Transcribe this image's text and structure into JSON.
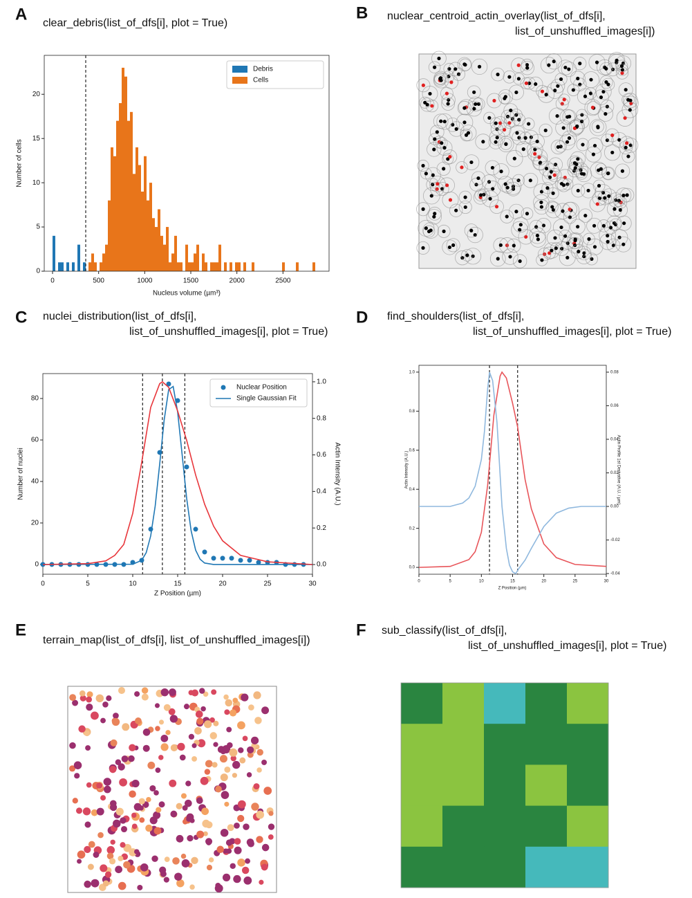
{
  "panels": [
    {
      "letter": "A",
      "caption": [
        "clear_debris(list_of_dfs[i], plot = True)"
      ]
    },
    {
      "letter": "B",
      "caption": [
        "nuclear_centroid_actin_overlay(list_of_dfs[i],",
        "list_of_unshuffled_images[i])"
      ]
    },
    {
      "letter": "C",
      "caption": [
        "nuclei_distribution(list_of_dfs[i],",
        "list_of_unshuffled_images[i], plot = True)"
      ]
    },
    {
      "letter": "D",
      "caption": [
        "find_shoulders(list_of_dfs[i],",
        "list_of_unshuffled_images[i], plot = True)"
      ]
    },
    {
      "letter": "E",
      "caption": [
        "terrain_map(list_of_dfs[i], list_of_unshuffled_images[i])"
      ]
    },
    {
      "letter": "F",
      "caption": [
        "sub_classify(list_of_dfs[i],",
        "list_of_unshuffled_images[i], plot = True)"
      ]
    }
  ],
  "chart_data": [
    {
      "type": "histogram",
      "x_label": "Nucleus volume (µm³)",
      "y_label": "Number of cells",
      "xlim": [
        -90,
        3000
      ],
      "ylim": [
        0,
        24.4
      ],
      "xticks": [
        0,
        500,
        1000,
        1500,
        2000,
        2500
      ],
      "yticks": [
        0,
        5,
        10,
        15,
        20
      ],
      "legend": "upper right",
      "vlines": [
        360
      ],
      "series": [
        {
          "name": "Debris",
          "color": "#1f77b4",
          "bins": [
            0,
            30,
            60,
            90,
            120,
            150,
            180,
            210,
            240,
            270,
            300,
            330,
            360
          ],
          "values": [
            4,
            0,
            1,
            1,
            0,
            1,
            0,
            1,
            0,
            3,
            0,
            1
          ]
        },
        {
          "name": "Cells",
          "color": "#e8751a",
          "bins": [
            360,
            390,
            420,
            450,
            480,
            510,
            540,
            570,
            600,
            630,
            660,
            690,
            720,
            750,
            780,
            810,
            840,
            870,
            900,
            930,
            960,
            990,
            1020,
            1050,
            1080,
            1110,
            1140,
            1170,
            1200,
            1230,
            1260,
            1290,
            1320,
            1350,
            1380,
            1410,
            1440,
            1470,
            1500,
            1530,
            1560,
            1590,
            1620,
            1650,
            1680,
            1710,
            1740,
            1770,
            1800,
            1830,
            1860,
            1890,
            1920,
            1950,
            1980,
            2010,
            2040,
            2070,
            2100,
            2130,
            2160,
            2190,
            2220,
            2250,
            2280,
            2310,
            2340,
            2370,
            2400,
            2430,
            2460,
            2490,
            2520,
            2550,
            2580,
            2610,
            2640,
            2670,
            2700,
            2730,
            2760,
            2790,
            2820,
            2850
          ],
          "values": [
            0,
            1,
            2,
            1,
            0,
            1,
            2,
            3,
            8,
            14,
            13,
            17,
            19,
            23,
            22,
            17,
            18,
            11,
            14,
            12,
            9,
            13,
            8,
            10,
            6,
            5,
            7,
            4,
            3,
            5,
            1,
            2,
            4,
            1,
            1,
            0,
            3,
            1,
            1,
            2,
            3,
            0,
            2,
            1,
            0,
            1,
            1,
            1,
            3,
            0,
            1,
            0,
            1,
            0,
            1,
            1,
            0,
            1,
            0,
            0,
            1,
            0,
            0,
            0,
            0,
            0,
            0,
            0,
            0,
            0,
            0,
            1,
            0,
            0,
            0,
            0,
            1,
            0,
            0,
            0,
            0,
            0,
            1
          ]
        }
      ]
    },
    {
      "type": "line",
      "x_label": "Z Position (µm)",
      "y_label": "Number of nuclei",
      "y2_label": "Actin Intensity (A.U.)",
      "xlim": [
        0,
        30
      ],
      "ylim": [
        -4.7,
        92
      ],
      "y2lim": [
        -0.053,
        1.045
      ],
      "xticks": [
        0,
        5,
        10,
        15,
        20,
        25,
        30
      ],
      "yticks": [
        0,
        20,
        40,
        60,
        80
      ],
      "y2ticks": [
        {
          "value": 0,
          "label": "0.0"
        },
        0.2,
        0.4,
        0.6,
        0.8,
        {
          "value": 1,
          "label": "1.0"
        }
      ],
      "legend": "upper right",
      "vlines": [
        11.1,
        13.3,
        15.8
      ],
      "series": [
        {
          "name": "Nuclear Position",
          "kind": "scatter",
          "color": "#1f77b4",
          "x": [
            0,
            1,
            2,
            3,
            4,
            5,
            6,
            7,
            8,
            9,
            10,
            11,
            12,
            13,
            14,
            15,
            16,
            17,
            18,
            19,
            20,
            21,
            22,
            23,
            24,
            25,
            26,
            27,
            28,
            29
          ],
          "values": [
            0,
            0,
            0,
            0,
            0,
            0,
            0,
            0,
            0,
            0,
            1,
            2,
            17,
            54,
            87,
            79,
            47,
            17,
            6,
            3,
            3,
            3,
            2,
            2,
            1,
            1,
            1,
            0,
            0,
            0
          ]
        },
        {
          "name": "Single Gaussian Fit",
          "kind": "line",
          "color": "#1f77b4",
          "x": [
            0,
            10,
            11,
            11.5,
            12,
            12.5,
            13,
            13.5,
            14,
            14.5,
            15,
            15.5,
            16,
            16.5,
            17,
            17.5,
            18,
            19,
            30
          ],
          "values": [
            0,
            0.1,
            2,
            5.7,
            13.8,
            28.2,
            48.4,
            69.7,
            84.3,
            85.8,
            73.4,
            52.8,
            31.9,
            16.2,
            6.9,
            2.5,
            0.7,
            0,
            0
          ]
        },
        {
          "kind": "line",
          "axis": "y2",
          "color": "#e8363b",
          "x": [
            0,
            5,
            7,
            8,
            9,
            10,
            11,
            12,
            13,
            13.3,
            14,
            15,
            16,
            17,
            18,
            19,
            20,
            22,
            25,
            30
          ],
          "values": [
            0,
            0.005,
            0.02,
            0.05,
            0.11,
            0.28,
            0.56,
            0.86,
            0.99,
            1,
            0.97,
            0.84,
            0.68,
            0.49,
            0.33,
            0.21,
            0.13,
            0.05,
            0.015,
            0
          ]
        }
      ]
    },
    {
      "type": "line",
      "x_label": "Z Position (µm)",
      "y_label": "Actin Intensity (A.U.)",
      "y2_label": "Actin Profile 1st Derivative (A.U. / µm)",
      "xlim": [
        0,
        30
      ],
      "ylim": [
        -0.035,
        1.035
      ],
      "y2lim": [
        -0.0404,
        0.0841
      ],
      "xticks": [
        0,
        5,
        10,
        15,
        20,
        25,
        30
      ],
      "yticks": [
        {
          "value": 0,
          "label": "0.0"
        },
        0.2,
        0.4,
        0.6,
        0.8,
        {
          "value": 1,
          "label": "1.0"
        }
      ],
      "y2ticks": [
        -0.04,
        -0.02,
        {
          "value": 0,
          "label": "0.00"
        },
        0.02,
        0.04,
        0.06,
        0.08
      ],
      "vlines": [
        11.3,
        15.8
      ],
      "series": [
        {
          "kind": "line",
          "color": "#e8555a",
          "x": [
            0,
            5,
            8,
            9,
            10,
            11,
            12,
            13,
            13.3,
            14,
            15,
            15.8,
            17,
            18,
            20,
            22,
            25,
            30
          ],
          "values": [
            0,
            0.005,
            0.04,
            0.08,
            0.18,
            0.42,
            0.78,
            0.98,
            1,
            0.97,
            0.84,
            0.72,
            0.45,
            0.3,
            0.12,
            0.05,
            0.015,
            0.005
          ]
        },
        {
          "kind": "line",
          "axis": "y2",
          "color": "#8fb8de",
          "x": [
            0,
            5,
            7,
            8,
            9,
            10,
            10.5,
            11,
            11.3,
            11.8,
            12.5,
            13.3,
            14,
            14.5,
            15,
            15.5,
            16,
            17,
            18,
            20,
            22,
            24,
            26,
            30
          ],
          "values": [
            0,
            0,
            0.002,
            0.005,
            0.012,
            0.028,
            0.045,
            0.07,
            0.08,
            0.075,
            0.05,
            0,
            -0.025,
            -0.035,
            -0.039,
            -0.04,
            -0.037,
            -0.032,
            -0.025,
            -0.012,
            -0.004,
            -0.001,
            0,
            0
          ]
        }
      ]
    },
    {
      "type": "heatmap",
      "colors": [
        "#2a8540",
        "#8bc440",
        "#45b9bb"
      ],
      "matrix": [
        [
          0,
          1,
          2,
          0,
          1
        ],
        [
          1,
          1,
          0,
          0,
          0
        ],
        [
          1,
          1,
          0,
          1,
          0
        ],
        [
          1,
          0,
          0,
          0,
          1
        ],
        [
          0,
          0,
          0,
          2,
          2
        ]
      ]
    }
  ]
}
